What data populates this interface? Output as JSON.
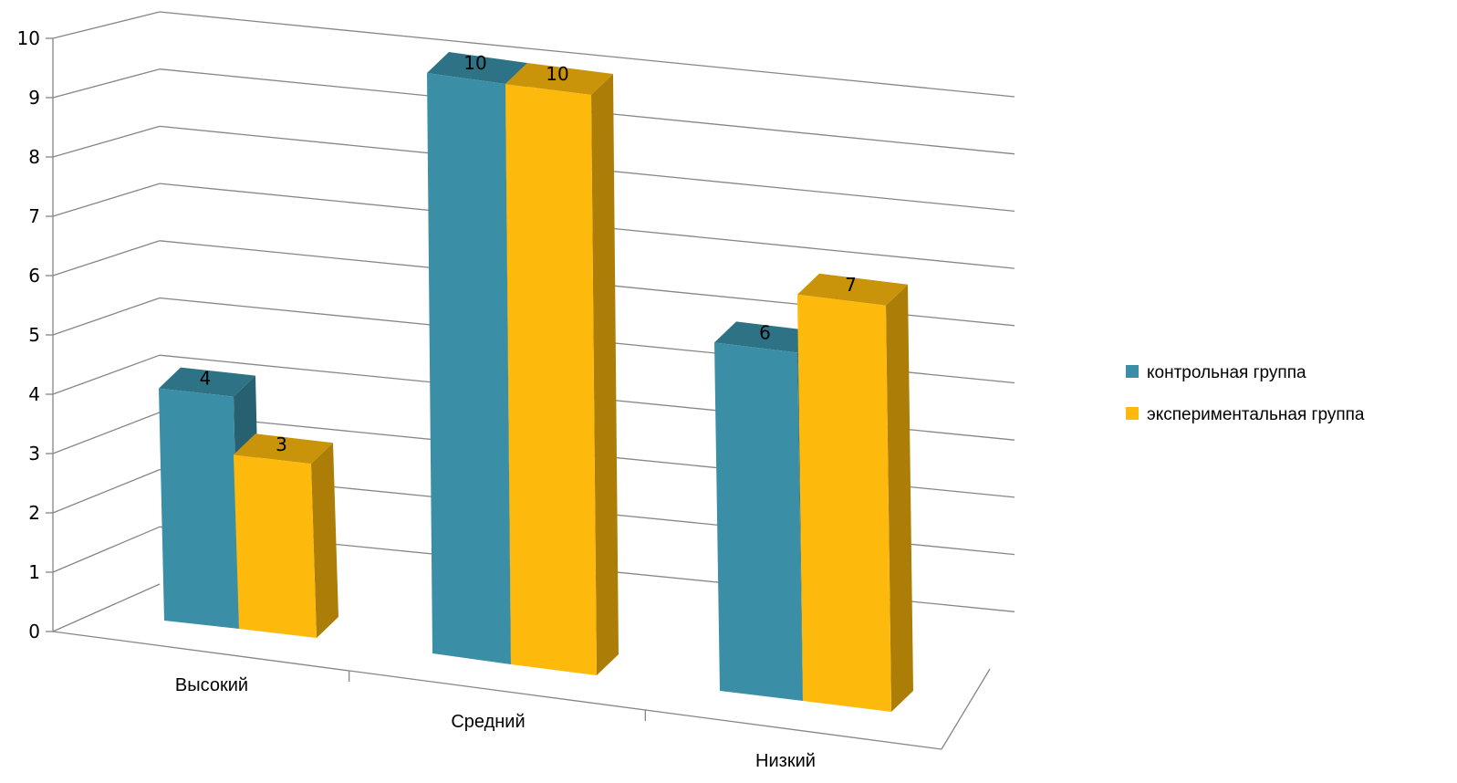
{
  "chart_data": {
    "type": "bar",
    "categories": [
      "Высокий",
      "Средний",
      "Низкий"
    ],
    "series": [
      {
        "name": "контрольная группа",
        "values": [
          4,
          10,
          6
        ],
        "color": "#3A8FA6"
      },
      {
        "name": "экспериментальная группа",
        "values": [
          3,
          10,
          7
        ],
        "color": "#FDB90C"
      }
    ],
    "ylim": [
      0,
      10
    ],
    "yticks": [
      "0",
      "1",
      "2",
      "3",
      "4",
      "5",
      "6",
      "7",
      "8",
      "9",
      "10"
    ],
    "grid": true,
    "legend_position": "right",
    "style": "3d-clustered-column"
  }
}
